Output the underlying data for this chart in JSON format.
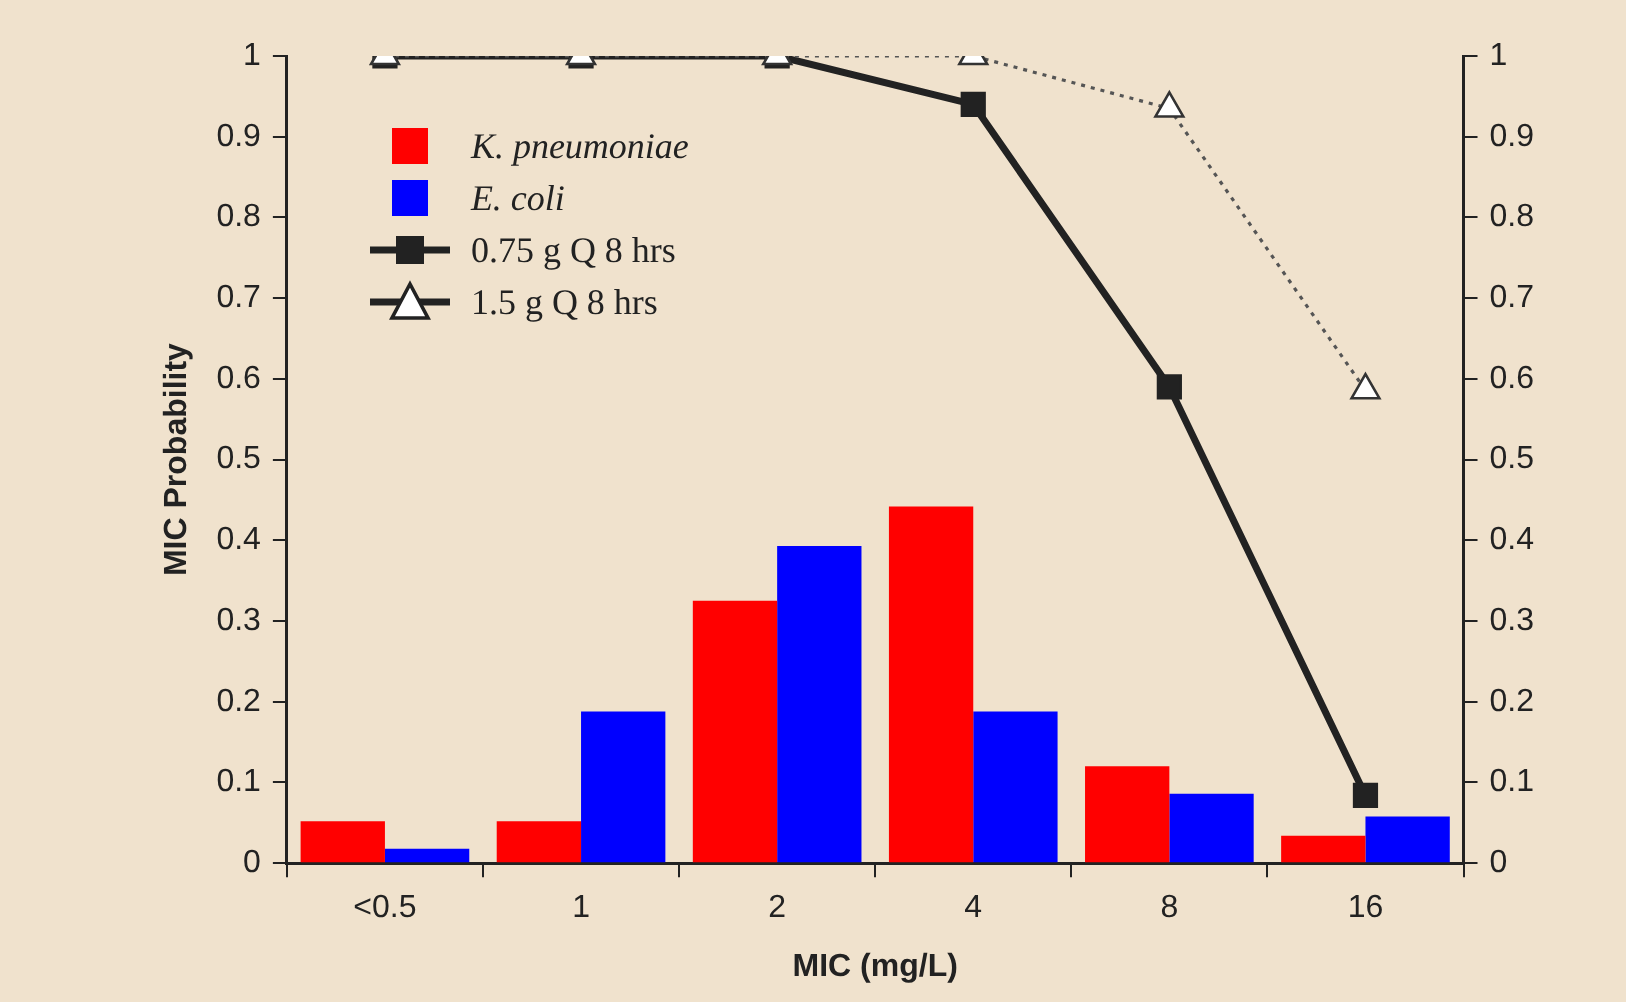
{
  "chart_data": {
    "type": "bar",
    "xlabel": "MIC (mg/L)",
    "ylabel": "MIC Probability",
    "categories": [
      "<0.5",
      "1",
      "2",
      "4",
      "8",
      "16"
    ],
    "series": [
      {
        "name": "K. pneumoniae",
        "color": "#ff0000",
        "values": [
          0.052,
          0.052,
          0.325,
          0.442,
          0.12,
          0.034
        ]
      },
      {
        "name": "E. coli",
        "color": "#0000ff",
        "values": [
          0.018,
          0.188,
          0.393,
          0.188,
          0.086,
          0.058
        ]
      },
      {
        "name": "0.75 g Q 8 hrs",
        "type": "line",
        "color": "#222222",
        "marker": "square",
        "line_style": "solid",
        "values": [
          1,
          1,
          1,
          0.94,
          0.59,
          0.084
        ]
      },
      {
        "name": "1.5 g Q 8 hrs",
        "type": "line",
        "color": "#555555",
        "marker": "triangle",
        "line_style": "dotted",
        "values": [
          1,
          1,
          1,
          1,
          0.935,
          0.586
        ]
      }
    ],
    "ylim": [
      0,
      1
    ],
    "yticks": [
      0,
      0.1,
      0.2,
      0.3,
      0.4,
      0.5,
      0.6,
      0.7,
      0.8,
      0.9,
      1
    ],
    "y2lim": [
      0,
      1
    ],
    "y2ticks": [
      0,
      0.1,
      0.2,
      0.3,
      0.4,
      0.5,
      0.6,
      0.7,
      0.8,
      0.9,
      1
    ],
    "legend": "top left"
  }
}
